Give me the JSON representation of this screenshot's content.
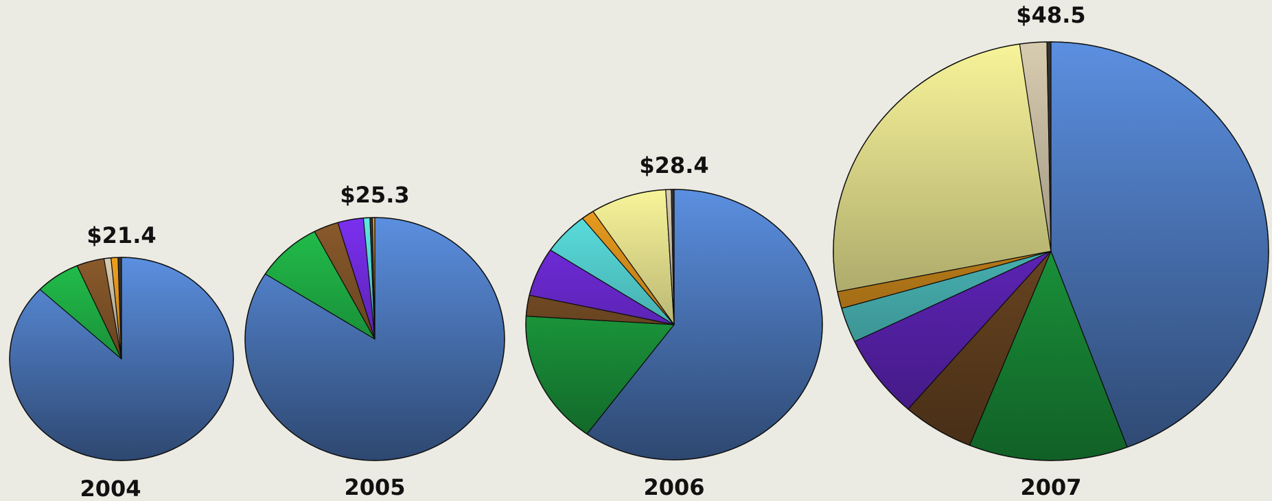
{
  "chart_data": [
    {
      "type": "pie",
      "title": "$21.4",
      "label": "2004",
      "values": [
        87,
        6.5,
        4,
        1,
        1,
        0.5
      ],
      "colors": [
        "#5b8fe0",
        "#22c04c",
        "#8a5a2b",
        "#d8ccb0",
        "#f0a020",
        "#333333"
      ]
    },
    {
      "type": "pie",
      "title": "$25.3",
      "label": "2005",
      "values": [
        84,
        8.3,
        3.1,
        3.2,
        0.8,
        0.3,
        0.3
      ],
      "colors": [
        "#5b8fe0",
        "#22c04c",
        "#8a5a2b",
        "#7b2ff0",
        "#5ee8e8",
        "#333333",
        "#f0a020"
      ]
    },
    {
      "type": "pie",
      "title": "$28.4",
      "label": "2006",
      "values": [
        60,
        16,
        2.5,
        5.8,
        5.1,
        1.4,
        8.3,
        0.6,
        0.3
      ],
      "colors": [
        "#5b8fe0",
        "#22c04c",
        "#8a5a2b",
        "#7b2ff0",
        "#5ee8e8",
        "#f0a020",
        "#f8f49a",
        "#d8ccb0",
        "#333333"
      ]
    },
    {
      "type": "pie",
      "title": "$48.5",
      "label": "2007",
      "values": [
        44.3,
        11.8,
        5.3,
        6.5,
        2.7,
        1.3,
        25.8,
        2,
        0.3
      ],
      "colors": [
        "#5b8fe0",
        "#22c04c",
        "#8a5a2b",
        "#7b2ff0",
        "#5ee8e8",
        "#f0a020",
        "#f8f49a",
        "#d8ccb0",
        "#333333"
      ]
    }
  ]
}
